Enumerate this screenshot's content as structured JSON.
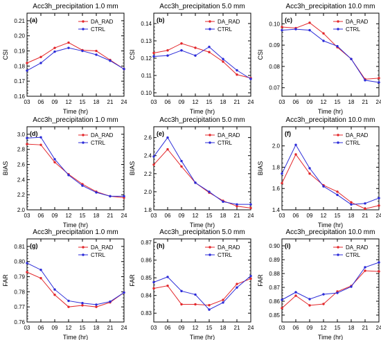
{
  "colors": {
    "series": [
      "#e3272b",
      "#2b2bd8"
    ],
    "frame": "#000000"
  },
  "chart_data": [
    {
      "type": "line",
      "id": "a",
      "title": "Acc3h_precipitation 1.0 mm",
      "panel_label": "(a)",
      "xlabel": "Time (hr)",
      "ylabel": "CSI",
      "categories": [
        "03",
        "06",
        "09",
        "12",
        "15",
        "18",
        "21",
        "24"
      ],
      "ylim": [
        0.16,
        0.215
      ],
      "yticks": [
        0.16,
        0.17,
        0.18,
        0.19,
        0.2,
        0.21
      ],
      "ytick_labels": [
        "0.16",
        "0.17",
        "0.18",
        "0.19",
        "0.20",
        "0.21"
      ],
      "legend_position": "top-right",
      "grid": false,
      "series": [
        {
          "name": "DA_RAD",
          "values": [
            0.182,
            0.186,
            0.192,
            0.1955,
            0.1905,
            0.19,
            0.184,
            0.178
          ]
        },
        {
          "name": "CTRL",
          "values": [
            0.177,
            0.182,
            0.1895,
            0.192,
            0.19,
            0.1875,
            0.1835,
            0.178
          ]
        }
      ]
    },
    {
      "type": "line",
      "id": "b",
      "title": "Acc3h_precipitation 5.0 mm",
      "panel_label": "(b)",
      "xlabel": "Time (hr)",
      "ylabel": "CSI",
      "categories": [
        "03",
        "06",
        "09",
        "12",
        "15",
        "18",
        "21",
        "24"
      ],
      "ylim": [
        0.098,
        0.146
      ],
      "yticks": [
        0.1,
        0.11,
        0.12,
        0.13,
        0.14
      ],
      "ytick_labels": [
        "0.10",
        "0.11",
        "0.12",
        "0.13",
        "0.14"
      ],
      "legend_position": "top-right",
      "grid": false,
      "series": [
        {
          "name": "DA_RAD",
          "values": [
            0.123,
            0.1245,
            0.1285,
            0.126,
            0.1235,
            0.118,
            0.1105,
            0.1085
          ]
        },
        {
          "name": "CTRL",
          "values": [
            0.121,
            0.1215,
            0.1245,
            0.1215,
            0.1265,
            0.1195,
            0.113,
            0.108
          ]
        }
      ]
    },
    {
      "type": "line",
      "id": "c",
      "title": "Acc3h_precipitation 10.0 mm",
      "panel_label": "(c)",
      "xlabel": "Time (hr)",
      "ylabel": "CSI",
      "categories": [
        "03",
        "06",
        "09",
        "12",
        "15",
        "18",
        "21",
        "24"
      ],
      "ylim": [
        0.066,
        0.105
      ],
      "yticks": [
        0.07,
        0.08,
        0.09,
        0.1
      ],
      "ytick_labels": [
        "0.07",
        "0.08",
        "0.09",
        "0.10"
      ],
      "legend_position": "top-right",
      "grid": false,
      "series": [
        {
          "name": "DA_RAD",
          "values": [
            0.0985,
            0.098,
            0.1005,
            0.0955,
            0.089,
            0.0835,
            0.074,
            0.0745
          ]
        },
        {
          "name": "CTRL",
          "values": [
            0.097,
            0.0975,
            0.097,
            0.092,
            0.0895,
            0.0835,
            0.0735,
            0.0725
          ]
        }
      ]
    },
    {
      "type": "line",
      "id": "d",
      "title": "Acc3h_precipitation 1.0 mm",
      "panel_label": "(d)",
      "xlabel": "Time (hr)",
      "ylabel": "BIAS",
      "categories": [
        "03",
        "06",
        "09",
        "12",
        "15",
        "18",
        "21",
        "24"
      ],
      "ylim": [
        2.0,
        3.1
      ],
      "yticks": [
        2.0,
        2.2,
        2.4,
        2.6,
        2.8,
        3.0
      ],
      "ytick_labels": [
        "2.0",
        "2.2",
        "2.4",
        "2.6",
        "2.8",
        "3.0"
      ],
      "legend_position": "top-right",
      "grid": false,
      "series": [
        {
          "name": "DA_RAD",
          "values": [
            2.87,
            2.86,
            2.63,
            2.47,
            2.34,
            2.24,
            2.18,
            2.16
          ]
        },
        {
          "name": "CTRL",
          "values": [
            2.95,
            2.96,
            2.67,
            2.46,
            2.32,
            2.23,
            2.18,
            2.18
          ]
        }
      ]
    },
    {
      "type": "line",
      "id": "e",
      "title": "Acc3h_precipitation 5.0 mm",
      "panel_label": "(e)",
      "xlabel": "Time (hr)",
      "ylabel": "BIAS",
      "categories": [
        "03",
        "06",
        "09",
        "12",
        "15",
        "18",
        "21",
        "24"
      ],
      "ylim": [
        1.8,
        2.72
      ],
      "yticks": [
        1.8,
        2.0,
        2.2,
        2.4,
        2.6
      ],
      "ytick_labels": [
        "1.8",
        "2.0",
        "2.2",
        "2.4",
        "2.6"
      ],
      "legend_position": "top-right",
      "grid": false,
      "series": [
        {
          "name": "DA_RAD",
          "values": [
            2.3,
            2.47,
            2.28,
            2.1,
            1.99,
            1.9,
            1.84,
            1.82
          ]
        },
        {
          "name": "CTRL",
          "values": [
            2.39,
            2.6,
            2.34,
            2.1,
            2.0,
            1.89,
            1.86,
            1.86
          ]
        }
      ]
    },
    {
      "type": "line",
      "id": "f",
      "title": "Acc3h_precipitation 10.0 mm",
      "panel_label": "(f)",
      "xlabel": "Time (hr)",
      "ylabel": "BIAS",
      "categories": [
        "03",
        "06",
        "09",
        "12",
        "15",
        "18",
        "21",
        "24"
      ],
      "ylim": [
        1.4,
        2.18
      ],
      "yticks": [
        1.4,
        1.6,
        1.8,
        2.0
      ],
      "ytick_labels": [
        "1.4",
        "1.6",
        "1.8",
        "2.0"
      ],
      "legend_position": "top-right",
      "grid": false,
      "series": [
        {
          "name": "DA_RAD",
          "values": [
            1.65,
            1.92,
            1.74,
            1.63,
            1.57,
            1.47,
            1.41,
            1.44
          ]
        },
        {
          "name": "CTRL",
          "values": [
            1.74,
            2.01,
            1.79,
            1.62,
            1.54,
            1.45,
            1.46,
            1.51
          ]
        }
      ]
    },
    {
      "type": "line",
      "id": "g",
      "title": "Acc3h_precipitation 1.0 mm",
      "panel_label": "(g)",
      "xlabel": "Time (hr)",
      "ylabel": "FAR",
      "categories": [
        "03",
        "06",
        "09",
        "12",
        "15",
        "18",
        "21",
        "24"
      ],
      "ylim": [
        0.76,
        0.815
      ],
      "yticks": [
        0.76,
        0.77,
        0.78,
        0.79,
        0.8,
        0.81
      ],
      "ytick_labels": [
        "0.76",
        "0.77",
        "0.78",
        "0.79",
        "0.80",
        "0.81"
      ],
      "legend_position": "top-right",
      "grid": false,
      "series": [
        {
          "name": "DA_RAD",
          "values": [
            0.793,
            0.789,
            0.778,
            0.77,
            0.771,
            0.77,
            0.773,
            0.7795
          ]
        },
        {
          "name": "CTRL",
          "values": [
            0.799,
            0.7945,
            0.7815,
            0.774,
            0.7725,
            0.7715,
            0.7735,
            0.7795
          ]
        }
      ]
    },
    {
      "type": "line",
      "id": "h",
      "title": "Acc3h_precipitation 5.0 mm",
      "panel_label": "(h)",
      "xlabel": "Time (hr)",
      "ylabel": "FAR",
      "categories": [
        "03",
        "06",
        "09",
        "12",
        "15",
        "18",
        "21",
        "24"
      ],
      "ylim": [
        0.825,
        0.872
      ],
      "yticks": [
        0.83,
        0.84,
        0.85,
        0.86,
        0.87
      ],
      "ytick_labels": [
        "0.83",
        "0.84",
        "0.85",
        "0.86",
        "0.87"
      ],
      "legend_position": "top-right",
      "grid": false,
      "series": [
        {
          "name": "DA_RAD",
          "values": [
            0.844,
            0.8455,
            0.835,
            0.835,
            0.8345,
            0.8375,
            0.8465,
            0.8495
          ]
        },
        {
          "name": "CTRL",
          "values": [
            0.8475,
            0.8505,
            0.8425,
            0.8405,
            0.832,
            0.836,
            0.8445,
            0.851
          ]
        }
      ]
    },
    {
      "type": "line",
      "id": "i",
      "title": "Acc3h_precipitation 10.0 mm",
      "panel_label": "(i)",
      "xlabel": "Time (hr)",
      "ylabel": "FAR",
      "categories": [
        "03",
        "06",
        "09",
        "12",
        "15",
        "18",
        "21",
        "24"
      ],
      "ylim": [
        0.845,
        0.905
      ],
      "yticks": [
        0.85,
        0.86,
        0.87,
        0.88,
        0.89,
        0.9
      ],
      "ytick_labels": [
        "0.85",
        "0.86",
        "0.87",
        "0.88",
        "0.89",
        "0.90"
      ],
      "legend_position": "top-right",
      "grid": false,
      "series": [
        {
          "name": "DA_RAD",
          "values": [
            0.855,
            0.864,
            0.857,
            0.858,
            0.867,
            0.871,
            0.882,
            0.8815
          ]
        },
        {
          "name": "CTRL",
          "values": [
            0.861,
            0.8665,
            0.8615,
            0.865,
            0.866,
            0.8705,
            0.8845,
            0.888
          ]
        }
      ]
    }
  ]
}
